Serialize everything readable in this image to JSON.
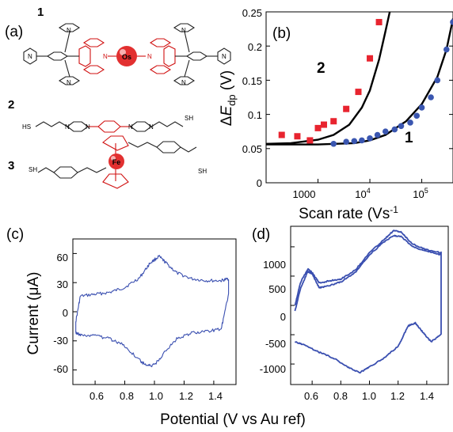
{
  "panel_labels": {
    "a": "(a)",
    "b": "(b)",
    "c": "(c)",
    "d": "(d)"
  },
  "structures": {
    "items": [
      {
        "number": "1",
        "metal": "Os",
        "atoms": [
          "N",
          "N",
          "N",
          "N",
          "N",
          "N",
          "N",
          "N"
        ]
      },
      {
        "number": "2",
        "thiol_left": "HS",
        "thiol_right": "SH",
        "atoms": [
          "N",
          "N",
          "N",
          "N"
        ]
      },
      {
        "number": "3",
        "metal": "Fe",
        "thiol_left": "SH",
        "thiol_right": "SH"
      }
    ]
  },
  "colors": {
    "series_red": "#e8242f",
    "series_blue": "#3a56b0",
    "cv_blue": "#3a4fb0",
    "fit_line": "#000000"
  },
  "chart_data": [
    {
      "id": "b",
      "type": "scatter",
      "xscale": "log",
      "xlim": [
        100,
        400000
      ],
      "ylim": [
        0,
        0.25
      ],
      "xlabel": "Scan rate (Vs-1)",
      "ylabel": "ΔEdp (V)",
      "x_ticks": [
        "1000",
        "10^4",
        "10^5"
      ],
      "y_ticks": [
        "0",
        "0.05",
        "0.1",
        "0.15",
        "0.2",
        "0.25"
      ],
      "series": [
        {
          "name": "2",
          "marker": "square",
          "color": "#e8242f",
          "x": [
            200,
            400,
            700,
            1000,
            1300,
            2000,
            3500,
            6000,
            10000,
            15000
          ],
          "y": [
            0.07,
            0.068,
            0.062,
            0.08,
            0.085,
            0.09,
            0.108,
            0.133,
            0.182,
            0.235
          ],
          "fit": {
            "x": [
              100,
              300,
              1000,
              2000,
              4000,
              7000,
              10000,
              15000,
              20000,
              25000
            ],
            "y": [
              0.057,
              0.058,
              0.063,
              0.07,
              0.085,
              0.11,
              0.135,
              0.18,
              0.222,
              0.255
            ]
          }
        },
        {
          "name": "1",
          "marker": "circle",
          "color": "#3a56b0",
          "x": [
            2000,
            3500,
            5000,
            7000,
            10000,
            14000,
            20000,
            30000,
            40000,
            60000,
            80000,
            100000,
            150000,
            200000,
            300000,
            400000
          ],
          "y": [
            0.057,
            0.06,
            0.061,
            0.062,
            0.065,
            0.07,
            0.075,
            0.078,
            0.083,
            0.088,
            0.098,
            0.11,
            0.125,
            0.15,
            0.195,
            0.235
          ],
          "fit": {
            "x": [
              100,
              1000,
              5000,
              10000,
              20000,
              50000,
              100000,
              200000,
              300000,
              400000
            ],
            "y": [
              0.056,
              0.056,
              0.058,
              0.062,
              0.07,
              0.09,
              0.115,
              0.155,
              0.195,
              0.24
            ]
          }
        }
      ]
    },
    {
      "id": "c",
      "type": "line",
      "xlim": [
        0.45,
        1.55
      ],
      "ylim": [
        -75,
        75
      ],
      "ylabel": "Current (μA)",
      "x_ticks": [
        "0.6",
        "0.8",
        "1.0",
        "1.2",
        "1.4"
      ],
      "y_ticks": [
        "60",
        "30",
        "0",
        "-30",
        "-60"
      ],
      "series": [
        {
          "name": "",
          "x": [
            0.47,
            0.5,
            0.6,
            0.7,
            0.8,
            0.9,
            0.97,
            1.03,
            1.08,
            1.15,
            1.25,
            1.35,
            1.45,
            1.5,
            1.5,
            1.45,
            1.35,
            1.25,
            1.15,
            1.08,
            1.0,
            0.95,
            0.9,
            0.8,
            0.7,
            0.6,
            0.5,
            0.47,
            0.47
          ],
          "y": [
            -10,
            16,
            18,
            20,
            25,
            35,
            50,
            57,
            50,
            40,
            34,
            32,
            32,
            34,
            18,
            -18,
            -20,
            -22,
            -28,
            -40,
            -55,
            -56,
            -50,
            -35,
            -28,
            -25,
            -24,
            -22,
            -10
          ]
        }
      ]
    },
    {
      "id": "d",
      "type": "line",
      "xlim": [
        0.45,
        1.55
      ],
      "ylim": [
        -1350,
        1350
      ],
      "xlabel": "Potential (V vs Au ref)",
      "x_ticks": [
        "0.6",
        "0.8",
        "1.0",
        "1.2",
        "1.4"
      ],
      "y_ticks": [
        "1000",
        "500",
        "0",
        "-500",
        "-1000"
      ],
      "series": [
        {
          "name": "",
          "x": [
            0.48,
            0.52,
            0.57,
            0.6,
            0.65,
            0.72,
            0.8,
            0.9,
            1.0,
            1.1,
            1.17,
            1.22,
            1.3,
            1.4,
            1.5,
            1.5,
            1.43,
            1.37,
            1.32,
            1.27,
            1.2,
            1.1,
            1.0,
            0.93,
            0.85,
            0.75,
            0.65,
            0.55,
            0.48
          ],
          "y": [
            0,
            400,
            620,
            560,
            380,
            420,
            450,
            600,
            900,
            1120,
            1280,
            1250,
            1050,
            950,
            900,
            -500,
            -620,
            -450,
            -300,
            -350,
            -700,
            -900,
            -1050,
            -1150,
            -1050,
            -900,
            -800,
            -680,
            -620
          ]
        },
        {
          "name": "",
          "x": [
            0.48,
            0.52,
            0.57,
            0.6,
            0.65,
            0.72,
            0.8,
            0.9,
            1.0,
            1.1,
            1.17,
            1.22,
            1.3,
            1.4,
            1.5
          ],
          "y": [
            -100,
            300,
            580,
            540,
            300,
            340,
            400,
            560,
            860,
            1080,
            1190,
            1180,
            1000,
            930,
            860
          ]
        }
      ]
    }
  ]
}
